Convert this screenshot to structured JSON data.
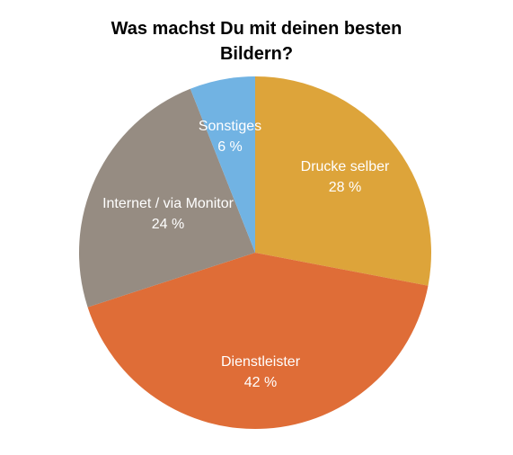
{
  "chart_data": {
    "type": "pie",
    "title_lines": [
      "Was machst Du mit deinen besten",
      "Bildern?"
    ],
    "slices": [
      {
        "label": "Drucke selber",
        "value": 28,
        "value_text": "28 %",
        "color": "#DDA43A"
      },
      {
        "label": "Dienstleister",
        "value": 42,
        "value_text": "42 %",
        "color": "#DF6D37"
      },
      {
        "label": "Internet / via Monitor",
        "value": 24,
        "value_text": "24 %",
        "color": "#968C82"
      },
      {
        "label": "Sonstiges",
        "value": 6,
        "value_text": "6 %",
        "color": "#71B3E3"
      }
    ],
    "start_angle": "12 o'clock",
    "direction": "clockwise",
    "legend": "none"
  }
}
